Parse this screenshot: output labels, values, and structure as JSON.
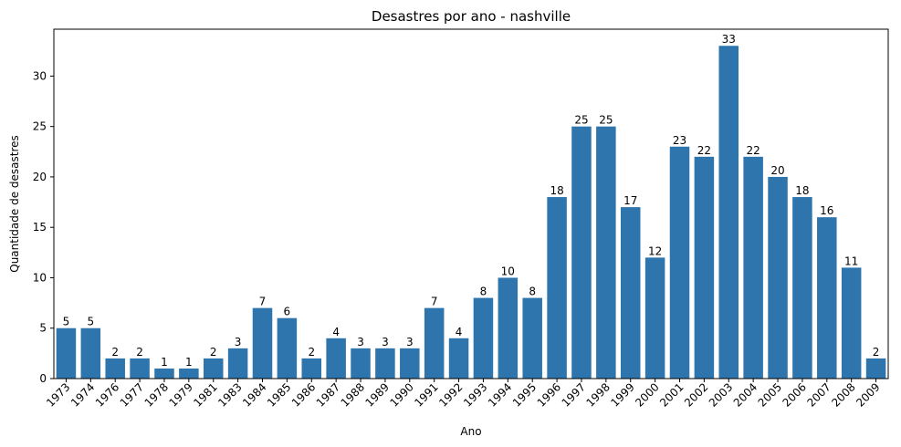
{
  "chart_data": {
    "type": "bar",
    "title": "Desastres por ano - nashville",
    "xlabel": "Ano",
    "ylabel": "Quantidade de desastres",
    "categories": [
      "1973",
      "1974",
      "1976",
      "1977",
      "1978",
      "1979",
      "1981",
      "1983",
      "1984",
      "1985",
      "1986",
      "1987",
      "1988",
      "1989",
      "1990",
      "1991",
      "1992",
      "1993",
      "1994",
      "1995",
      "1996",
      "1997",
      "1998",
      "1999",
      "2000",
      "2001",
      "2002",
      "2003",
      "2004",
      "2005",
      "2006",
      "2007",
      "2008",
      "2009"
    ],
    "values": [
      5,
      5,
      2,
      2,
      1,
      1,
      2,
      3,
      7,
      6,
      2,
      4,
      3,
      3,
      3,
      7,
      4,
      8,
      10,
      8,
      18,
      25,
      25,
      17,
      12,
      23,
      22,
      33,
      22,
      20,
      18,
      16,
      11,
      2
    ],
    "ylim": [
      0,
      34.65
    ],
    "yticks": [
      0,
      5,
      10,
      15,
      20,
      25,
      30
    ],
    "bar_color": "#2e75ae",
    "grid": false,
    "legend": "none"
  }
}
